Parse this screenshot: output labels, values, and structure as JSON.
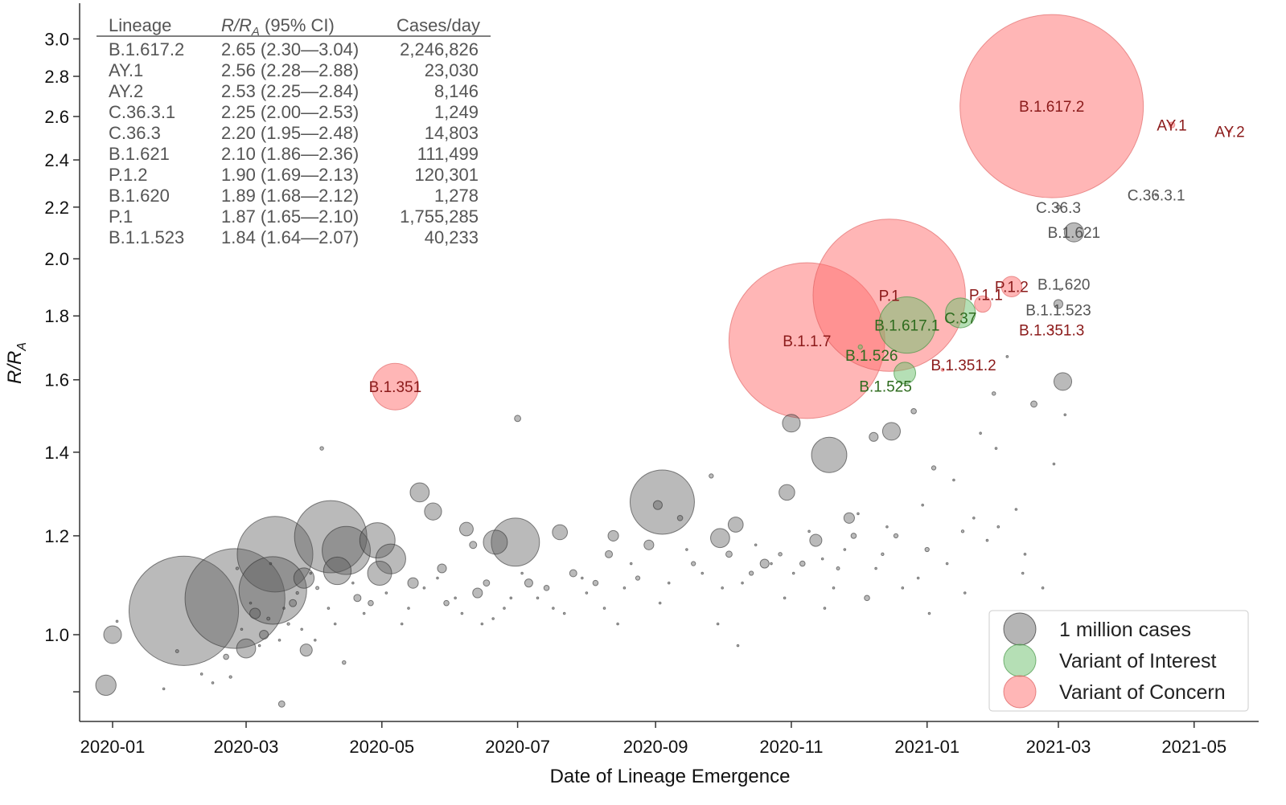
{
  "chart_data": {
    "type": "scatter",
    "xlabel": "Date of Lineage Emergence",
    "ylabel": "R/R_A",
    "ylabel_main": "R/R",
    "ylabel_sub": "A",
    "y_scale": "log",
    "xlim": [
      "2019-12-16",
      "2021-05-27"
    ],
    "ylim": [
      0.86,
      3.08
    ],
    "x_ticks": [
      "2020-01",
      "2020-03",
      "2020-05",
      "2020-07",
      "2020-09",
      "2020-11",
      "2021-01",
      "2021-03",
      "2021-05"
    ],
    "y_ticks": [
      0.9,
      1.0,
      1.2,
      1.4,
      1.6,
      1.8,
      2.0,
      2.2,
      2.4,
      2.6,
      2.8,
      3.0
    ],
    "y_tick_labels": [
      "",
      "1.0",
      "1.2",
      "1.4",
      "1.6",
      "1.8",
      "2.0",
      "2.2",
      "2.4",
      "2.6",
      "2.8",
      "3.0"
    ],
    "grid": false,
    "marker_size": "proportional to cases/day",
    "colors": {
      "other": "#666666",
      "voi": "#6cbf6c",
      "voc": "#ff7a7a",
      "voc_label": "#8b1a1a",
      "voi_label": "#2e6b1e",
      "other_label": "#555555"
    },
    "legend": {
      "placement": "bottom-right",
      "entries": [
        {
          "label": "1 million cases",
          "category": "other"
        },
        {
          "label": "Variant of Interest",
          "category": "voi"
        },
        {
          "label": "Variant of Concern",
          "category": "voc"
        }
      ]
    },
    "table": {
      "headers": {
        "lineage": "Lineage",
        "r_main": "R/R",
        "r_sub": "A",
        "r_rest": " (95% CI)",
        "cases": "Cases/day"
      },
      "rows": [
        {
          "lineage": "B.1.617.2",
          "r": "2.65 (2.30—3.04)",
          "cases": "2,246,826"
        },
        {
          "lineage": "AY.1",
          "r": "2.56 (2.28—2.88)",
          "cases": "23,030"
        },
        {
          "lineage": "AY.2",
          "r": "2.53 (2.25—2.84)",
          "cases": "8,146"
        },
        {
          "lineage": "C.36.3.1",
          "r": "2.25 (2.00—2.53)",
          "cases": "1,249"
        },
        {
          "lineage": "C.36.3",
          "r": "2.20 (1.95—2.48)",
          "cases": "14,803"
        },
        {
          "lineage": "B.1.621",
          "r": "2.10 (1.86—2.36)",
          "cases": "111,499"
        },
        {
          "lineage": "P.1.2",
          "r": "1.90 (1.69—2.13)",
          "cases": "120,301"
        },
        {
          "lineage": "B.1.620",
          "r": "1.89 (1.68—2.12)",
          "cases": "1,278"
        },
        {
          "lineage": "P.1",
          "r": "1.87 (1.65—2.10)",
          "cases": "1,755,285"
        },
        {
          "lineage": "B.1.1.523",
          "r": "1.84 (1.64—2.07)",
          "cases": "40,233"
        }
      ]
    },
    "labeled_points": [
      {
        "label": "B.1.1.7",
        "date": "2020-11-08",
        "r": 1.72,
        "cases": 1810000,
        "category": "voc"
      },
      {
        "label": "P.1",
        "date": "2020-12-15",
        "r": 1.87,
        "cases": 1755285,
        "category": "voc"
      },
      {
        "label": "B.1.617.2",
        "date": "2021-02-26",
        "r": 2.65,
        "cases": 2246826,
        "category": "voc"
      },
      {
        "label": "B.1.351",
        "date": "2020-05-07",
        "r": 1.58,
        "cases": 362000,
        "category": "voc"
      },
      {
        "label": "B.1.617.1",
        "date": "2020-12-23",
        "r": 1.77,
        "cases": 466000,
        "category": "voi"
      },
      {
        "label": "C.37",
        "date": "2021-01-16",
        "r": 1.81,
        "cases": 200000,
        "category": "voi"
      },
      {
        "label": "B.1.525",
        "date": "2020-12-22",
        "r": 1.62,
        "cases": 130000,
        "category": "voi"
      },
      {
        "label": "B.1.526",
        "date": "2020-12-02",
        "r": 1.7,
        "cases": 15000,
        "category": "voi"
      },
      {
        "label": "P.1.1",
        "date": "2021-01-26",
        "r": 1.84,
        "cases": 90000,
        "category": "voc"
      },
      {
        "label": "P.1.2",
        "date": "2021-02-08",
        "r": 1.9,
        "cases": 120301,
        "category": "voc"
      },
      {
        "label": "B.1.351.2",
        "date": "2021-01-08",
        "r": 1.63,
        "cases": 10000,
        "category": "voc"
      },
      {
        "label": "B.1.351.3",
        "date": "2021-02-26",
        "r": 1.755,
        "cases": 8000,
        "category": "voc"
      },
      {
        "label": "AY.1",
        "date": "2021-04-21",
        "r": 2.56,
        "cases": 23030,
        "category": "voc"
      },
      {
        "label": "AY.2",
        "date": "2021-05-17",
        "r": 2.53,
        "cases": 8146,
        "category": "voc"
      },
      {
        "label": "C.36.3.1",
        "date": "2021-04-14",
        "r": 2.25,
        "cases": 1249,
        "category": "other"
      },
      {
        "label": "C.36.3",
        "date": "2021-03-01",
        "r": 2.2,
        "cases": 14803,
        "category": "other"
      },
      {
        "label": "B.1.621",
        "date": "2021-03-08",
        "r": 2.1,
        "cases": 111499,
        "category": "other"
      },
      {
        "label": "B.1.620",
        "date": "2021-03-02",
        "r": 1.89,
        "cases": 1278,
        "category": "other"
      },
      {
        "label": "B.1.1.523",
        "date": "2021-03-01",
        "r": 1.84,
        "cases": 40233,
        "category": "other"
      }
    ],
    "other_points": [
      [
        "2020-02-02",
        1.045,
        1130000
      ],
      [
        "2020-02-25",
        1.069,
        1000000
      ],
      [
        "2020-03-14",
        1.16,
        690000
      ],
      [
        "2020-03-13",
        1.085,
        594000
      ],
      [
        "2020-04-08",
        1.198,
        650000
      ],
      [
        "2020-04-15",
        1.168,
        378000
      ],
      [
        "2020-04-29",
        1.19,
        250000
      ],
      [
        "2020-05-05",
        1.15,
        200000
      ],
      [
        "2020-06-30",
        1.186,
        378000
      ],
      [
        "2020-06-21",
        1.186,
        150000
      ],
      [
        "2020-09-04",
        1.277,
        556000
      ],
      [
        "2020-09-02",
        1.27,
        40000
      ],
      [
        "2020-11-18",
        1.393,
        250000
      ],
      [
        "2020-11-01",
        1.477,
        100000
      ],
      [
        "2020-12-16",
        1.455,
        100000
      ],
      [
        "2020-10-30",
        1.3,
        85000
      ],
      [
        "2021-03-03",
        1.595,
        100000
      ],
      [
        "2020-01-01",
        1.0,
        100000
      ],
      [
        "2019-12-29",
        0.911,
        120000
      ],
      [
        "2020-05-18",
        1.3,
        110000
      ],
      [
        "2020-05-24",
        1.255,
        95000
      ],
      [
        "2020-06-08",
        1.215,
        70000
      ],
      [
        "2020-07-20",
        1.208,
        80000
      ],
      [
        "2020-07-01",
        1.49,
        25000
      ],
      [
        "2020-04-04",
        1.41,
        12000
      ],
      [
        "2020-04-30",
        1.12,
        150000
      ],
      [
        "2020-04-11",
        1.125,
        180000
      ],
      [
        "2020-03-27",
        1.11,
        120000
      ],
      [
        "2020-03-01",
        0.975,
        110000
      ],
      [
        "2020-03-28",
        0.972,
        60000
      ],
      [
        "2020-03-17",
        0.88,
        25000
      ],
      [
        "2020-10-07",
        1.225,
        80000
      ],
      [
        "2020-09-30",
        1.195,
        110000
      ],
      [
        "2020-11-27",
        1.24,
        50000
      ],
      [
        "2020-12-08",
        1.44,
        40000
      ],
      [
        "2020-12-26",
        1.51,
        20000
      ],
      [
        "2021-01-04",
        1.36,
        15000
      ],
      [
        "2021-02-18",
        1.53,
        25000
      ],
      [
        "2021-01-31",
        1.56,
        12000
      ],
      [
        "2021-02-06",
        1.67,
        6000
      ],
      [
        "2020-11-12",
        1.19,
        60000
      ],
      [
        "2020-10-20",
        1.14,
        40000
      ],
      [
        "2020-08-13",
        1.2,
        50000
      ],
      [
        "2020-08-29",
        1.18,
        45000
      ],
      [
        "2020-06-11",
        1.18,
        30000
      ],
      [
        "2020-05-28",
        1.13,
        40000
      ],
      [
        "2020-05-15",
        1.1,
        50000
      ],
      [
        "2020-06-13",
        1.08,
        45000
      ],
      [
        "2020-07-06",
        1.1,
        35000
      ],
      [
        "2020-07-26",
        1.12,
        30000
      ],
      [
        "2020-08-11",
        1.16,
        30000
      ],
      [
        "2020-09-26",
        1.34,
        15000
      ],
      [
        "2020-10-04",
        1.16,
        25000
      ],
      [
        "2020-11-06",
        1.14,
        20000
      ],
      [
        "2020-12-05",
        1.07,
        20000
      ],
      [
        "2020-11-29",
        1.2,
        20000
      ],
      [
        "2020-12-18",
        1.2,
        15000
      ],
      [
        "2021-01-01",
        1.17,
        15000
      ],
      [
        "2020-03-09",
        1.0,
        40000
      ],
      [
        "2020-03-05",
        1.04,
        50000
      ],
      [
        "2020-02-21",
        0.96,
        20000
      ],
      [
        "2020-03-22",
        1.06,
        30000
      ],
      [
        "2020-04-20",
        1.07,
        30000
      ],
      [
        "2020-04-14",
        0.95,
        12000
      ],
      [
        "2020-01-30",
        0.97,
        10000
      ],
      [
        "2020-02-23",
        0.925,
        8000
      ],
      [
        "2020-02-10",
        0.93,
        5000
      ],
      [
        "2020-04-26",
        1.06,
        20000
      ],
      [
        "2020-05-30",
        1.06,
        20000
      ],
      [
        "2020-06-17",
        1.1,
        25000
      ],
      [
        "2020-07-14",
        1.09,
        20000
      ],
      [
        "2020-08-05",
        1.1,
        20000
      ],
      [
        "2020-08-24",
        1.11,
        15000
      ],
      [
        "2020-09-12",
        1.24,
        20000
      ],
      [
        "2020-09-18",
        1.14,
        15000
      ],
      [
        "2020-10-14",
        1.12,
        15000
      ],
      [
        "2020-10-27",
        1.16,
        12000
      ],
      [
        "2020-11-22",
        1.13,
        10000
      ],
      [
        "2020-12-12",
        1.16,
        8000
      ],
      [
        "2021-01-17",
        1.21,
        8000
      ],
      [
        "2021-02-02",
        1.22,
        6000
      ],
      [
        "2021-03-04",
        1.5,
        5000
      ],
      [
        "2021-02-27",
        1.37,
        4000
      ],
      [
        "2021-01-25",
        1.45,
        3000
      ],
      [
        "2021-02-14",
        1.16,
        3000
      ],
      [
        "2021-01-18",
        1.08,
        3000
      ],
      [
        "2020-12-28",
        1.11,
        4000
      ],
      [
        "2020-09-29",
        1.02,
        3000
      ],
      [
        "2020-07-22",
        1.04,
        3000
      ],
      [
        "2020-05-10",
        1.02,
        4000
      ],
      [
        "2020-06-25",
        1.05,
        4000
      ],
      [
        "2020-03-20",
        1.02,
        8000
      ],
      [
        "2020-03-11",
        1.03,
        10000
      ],
      [
        "2020-03-16",
        0.99,
        6000
      ],
      [
        "2020-03-24",
        1.08,
        8000
      ],
      [
        "2020-04-02",
        1.09,
        10000
      ],
      [
        "2020-04-07",
        1.05,
        6000
      ],
      [
        "2020-05-03",
        1.08,
        6000
      ],
      [
        "2020-05-20",
        1.09,
        5000
      ],
      [
        "2020-06-03",
        1.07,
        5000
      ],
      [
        "2020-06-28",
        1.07,
        5000
      ],
      [
        "2020-07-10",
        1.07,
        4000
      ],
      [
        "2020-08-01",
        1.08,
        4000
      ],
      [
        "2020-08-18",
        1.09,
        4000
      ],
      [
        "2020-09-07",
        1.1,
        4000
      ],
      [
        "2020-09-22",
        1.12,
        4000
      ],
      [
        "2020-10-10",
        1.1,
        4000
      ],
      [
        "2020-10-23",
        1.14,
        3000
      ],
      [
        "2020-11-02",
        1.12,
        3000
      ],
      [
        "2020-11-15",
        1.15,
        3000
      ],
      [
        "2020-11-25",
        1.17,
        3000
      ],
      [
        "2020-12-09",
        1.13,
        3000
      ],
      [
        "2020-12-21",
        1.09,
        2000
      ],
      [
        "2021-01-10",
        1.14,
        2000
      ],
      [
        "2021-01-28",
        1.19,
        2000
      ],
      [
        "2021-02-10",
        1.26,
        2000
      ],
      [
        "2020-02-28",
        1.01,
        5000
      ],
      [
        "2020-03-03",
        1.06,
        5000
      ],
      [
        "2020-03-07",
        0.98,
        4000
      ],
      [
        "2020-03-18",
        1.05,
        4000
      ],
      [
        "2020-03-26",
        1.01,
        4000
      ],
      [
        "2020-04-10",
        1.02,
        3000
      ],
      [
        "2020-04-18",
        1.1,
        3000
      ],
      [
        "2020-04-23",
        1.04,
        3000
      ],
      [
        "2020-05-13",
        1.05,
        3000
      ],
      [
        "2020-05-26",
        1.11,
        3000
      ],
      [
        "2020-06-06",
        1.04,
        2500
      ],
      [
        "2020-06-20",
        1.03,
        2500
      ],
      [
        "2020-07-03",
        1.12,
        2500
      ],
      [
        "2020-07-17",
        1.05,
        2500
      ],
      [
        "2020-07-30",
        1.11,
        2500
      ],
      [
        "2020-08-09",
        1.05,
        2000
      ],
      [
        "2020-08-21",
        1.14,
        2000
      ],
      [
        "2020-09-03",
        1.06,
        2000
      ],
      [
        "2020-09-15",
        1.17,
        2000
      ],
      [
        "2020-10-01",
        1.09,
        2000
      ],
      [
        "2020-10-16",
        1.18,
        2000
      ],
      [
        "2020-10-29",
        1.07,
        2000
      ],
      [
        "2020-11-09",
        1.21,
        2000
      ],
      [
        "2020-11-20",
        1.09,
        2000
      ],
      [
        "2020-12-01",
        1.25,
        1500
      ],
      [
        "2020-12-14",
        1.22,
        1500
      ],
      [
        "2020-12-30",
        1.27,
        1500
      ],
      [
        "2021-01-13",
        1.33,
        1500
      ],
      [
        "2021-02-22",
        1.09,
        1500
      ],
      [
        "2021-01-22",
        1.24,
        1500
      ],
      [
        "2020-01-03",
        1.025,
        3000
      ],
      [
        "2020-01-24",
        0.905,
        2000
      ],
      [
        "2020-02-15",
        0.915,
        3000
      ],
      [
        "2020-04-01",
        0.99,
        3000
      ],
      [
        "2020-03-30",
        1.12,
        5000
      ],
      [
        "2020-02-26",
        1.13,
        8000
      ],
      [
        "2020-03-12",
        1.14,
        6000
      ],
      [
        "2020-06-15",
        1.02,
        2000
      ],
      [
        "2020-08-15",
        1.02,
        1500
      ],
      [
        "2020-10-08",
        0.98,
        1500
      ],
      [
        "2020-11-16",
        1.05,
        1500
      ],
      [
        "2021-01-02",
        1.04,
        1500
      ],
      [
        "2021-02-01",
        1.41,
        1500
      ],
      [
        "2021-02-13",
        1.12,
        1500
      ]
    ]
  }
}
